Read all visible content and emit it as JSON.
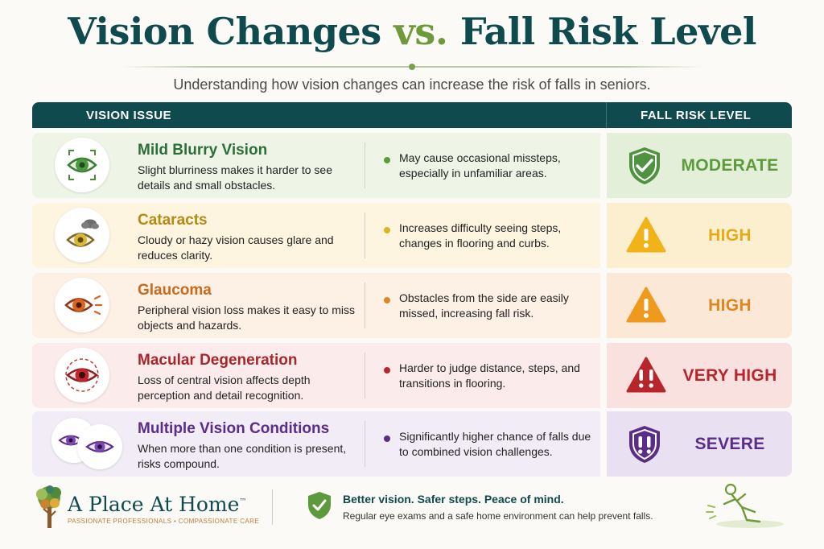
{
  "header": {
    "title_part1": "Vision Changes ",
    "title_vs": "vs.",
    "title_part2": " Fall Risk Level",
    "subtitle": "Understanding how vision changes can increase the risk of falls in seniors."
  },
  "table": {
    "col_left": "VISION ISSUE",
    "col_right": "FALL RISK LEVEL",
    "rows": [
      {
        "title": "Mild Blurry Vision",
        "description": "Slight blurriness makes it harder to see details and small obstacles.",
        "impact": "May cause occasional missteps, especially in unfamiliar areas.",
        "risk": "MODERATE",
        "icon": "blurry-eye-icon",
        "risk_icon": "shield-check-icon",
        "title_color": "#2d6e3a",
        "risk_color": "#5d9a3c",
        "bg_left": "#eef5e6",
        "bg_right": "#e4efd9"
      },
      {
        "title": "Cataracts",
        "description": "Cloudy or hazy vision causes glare and reduces clarity.",
        "impact": "Increases difficulty seeing steps, changes in flooring and curbs.",
        "risk": "HIGH",
        "icon": "cloudy-eye-icon",
        "risk_icon": "warning-triangle-icon",
        "title_color": "#b48a12",
        "risk_color": "#e8a915",
        "bg_left": "#fdf5e0",
        "bg_right": "#fbefd0"
      },
      {
        "title": "Glaucoma",
        "description": "Peripheral vision loss makes it easy to miss objects and hazards.",
        "impact": "Obstacles from the side are easily missed, increasing fall risk.",
        "risk": "HIGH",
        "icon": "peripheral-eye-icon",
        "risk_icon": "warning-triangle-icon",
        "title_color": "#c56a1f",
        "risk_color": "#e0861e",
        "bg_left": "#fdf0e4",
        "bg_right": "#fbe8d6"
      },
      {
        "title": "Macular Degeneration",
        "description": "Loss of central vision affects depth perception and detail recognition.",
        "impact": "Harder to judge distance, steps, and transitions in flooring.",
        "risk": "VERY HIGH",
        "icon": "macular-eye-icon",
        "risk_icon": "danger-triangle-icon",
        "title_color": "#a8262a",
        "risk_color": "#b8262b",
        "bg_left": "#fbeceb",
        "bg_right": "#f8e1df"
      },
      {
        "title": "Multiple Vision Conditions",
        "description": "When more than one condition is present, risks compound.",
        "impact": "Significantly higher chance of falls due to combined vision challenges.",
        "risk": "SEVERE",
        "icon": "multiple-eyes-icon",
        "risk_icon": "shield-alert-icon",
        "title_color": "#5b2d86",
        "risk_color": "#5b2d86",
        "bg_left": "#f1ecf6",
        "bg_right": "#e9e1f2"
      }
    ]
  },
  "footer": {
    "brand_name": "A Place At Home",
    "brand_tm": "™",
    "brand_tagline": "PASSIONATE PROFESSIONALS • COMPASSIONATE CARE",
    "headline": "Better vision. Safer steps. Peace of mind.",
    "text": "Regular eye exams and a safe home environment can help prevent falls."
  },
  "colors": {
    "brand_teal": "#0f4a4f",
    "brand_green": "#6f9a3a"
  }
}
